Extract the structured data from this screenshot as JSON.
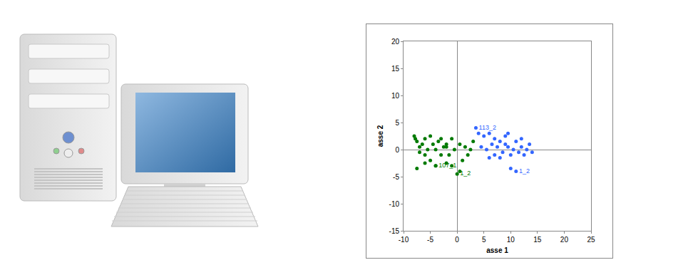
{
  "chart_data": {
    "type": "scatter",
    "x_label": "asse 1",
    "y_label": "asse 2",
    "xlim": [
      -10,
      25
    ],
    "xticks": [
      -10,
      -5,
      0,
      5,
      10,
      15,
      20,
      25
    ],
    "ylim": [
      -15,
      20
    ],
    "yticks": [
      -15,
      -10,
      -5,
      0,
      5,
      10,
      15,
      20
    ],
    "grid": false,
    "series": [
      {
        "color": "#007a00",
        "marker": "circle",
        "x": [
          -8,
          -7.5,
          -7,
          -7,
          -6.5,
          -6,
          -6,
          -5.5,
          -5,
          -5,
          -4.5,
          -4,
          -4,
          -3.5,
          -3,
          -3,
          -2.5,
          -2,
          -2,
          -1.5,
          -1,
          -1,
          -0.5,
          0,
          0.5,
          1,
          1.5,
          2,
          2.5,
          3,
          -7.5,
          -6,
          -4,
          -2,
          0.5,
          -7.8
        ],
        "y": [
          2.5,
          1.5,
          0.5,
          -0.5,
          1,
          2,
          -1,
          0,
          2.5,
          -2,
          1,
          0,
          -3,
          1.5,
          -1,
          2,
          0.5,
          -2.5,
          1,
          -1,
          2,
          -3,
          0,
          -4.5,
          1,
          -2,
          0.5,
          -1,
          0,
          1.5,
          -3.5,
          -2.5,
          -3,
          0.5,
          -4,
          2
        ],
        "labels": [
          null,
          null,
          null,
          null,
          null,
          null,
          null,
          null,
          null,
          null,
          null,
          null,
          null,
          null,
          null,
          null,
          null,
          null,
          null,
          null,
          null,
          null,
          null,
          "1_2",
          null,
          null,
          null,
          null,
          null,
          null,
          null,
          null,
          "107_1",
          null,
          null,
          null
        ]
      },
      {
        "color": "#3366ff",
        "marker": "circle",
        "x": [
          3.5,
          4,
          5,
          6,
          6.5,
          7,
          7.5,
          8,
          8.5,
          9,
          9.5,
          10,
          10.5,
          11,
          11.5,
          12,
          12.5,
          13,
          13.5,
          14,
          5.5,
          7,
          9,
          10,
          11,
          12,
          4.5,
          8,
          9.5,
          6
        ],
        "y": [
          4,
          3,
          2.5,
          3,
          1,
          2,
          0.5,
          1.5,
          -0.5,
          1,
          0.5,
          -1,
          0,
          1.5,
          -0.5,
          0.5,
          -1,
          0,
          1,
          -0.5,
          0,
          -1,
          2.5,
          -3.5,
          -4,
          2,
          0.5,
          -1.5,
          3,
          -1.5
        ],
        "labels": [
          "113_2",
          null,
          null,
          null,
          null,
          null,
          null,
          null,
          null,
          null,
          null,
          null,
          null,
          null,
          null,
          null,
          null,
          null,
          null,
          null,
          null,
          null,
          null,
          null,
          "1_2",
          null,
          null,
          null,
          null,
          null
        ]
      }
    ]
  }
}
